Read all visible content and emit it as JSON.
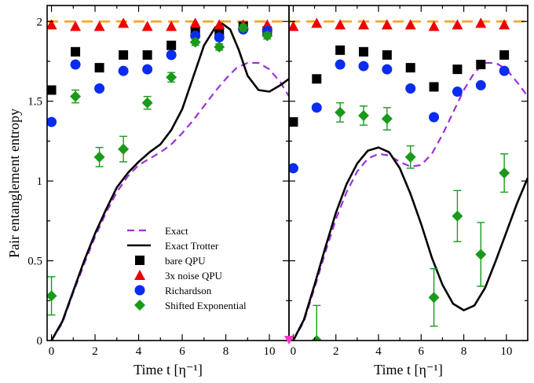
{
  "chart_data": {
    "type": "scatter",
    "ylabel": "Pair entanglement entropy",
    "ylim": [
      0,
      2.1
    ],
    "yticks": [
      0,
      0.5,
      1,
      1.5,
      2
    ],
    "ytick_labels": [
      "0",
      "0.5",
      "1",
      "1.5",
      "2"
    ],
    "legend_position": "bottom-center of left panel",
    "panels": [
      {
        "name": "left",
        "xlabel": "Time t [η⁻¹]",
        "xlim": [
          -0.2,
          10.9
        ],
        "xticks": [
          0,
          2,
          4,
          6,
          8,
          10
        ],
        "xtick_labels": [
          "0",
          "2",
          "4",
          "6",
          "8",
          "10"
        ],
        "series": [
          {
            "name": "Exact",
            "kind": "line",
            "color": "#9b30d9",
            "dash": "9,6",
            "x": [
              0,
              0.5,
              1,
              1.5,
              2,
              2.5,
              3,
              3.5,
              4,
              4.5,
              5,
              5.5,
              6,
              6.5,
              7,
              7.5,
              8,
              8.5,
              9,
              9.5,
              10,
              10.5,
              10.9
            ],
            "y": [
              0,
              0.11,
              0.3,
              0.48,
              0.65,
              0.8,
              0.93,
              1.03,
              1.1,
              1.14,
              1.18,
              1.23,
              1.3,
              1.38,
              1.47,
              1.56,
              1.64,
              1.71,
              1.74,
              1.74,
              1.7,
              1.62,
              1.53
            ]
          },
          {
            "name": "Exact Trotter",
            "kind": "line",
            "color": "#000000",
            "dash": "",
            "x": [
              0,
              0.5,
              1,
              1.5,
              2,
              2.5,
              3,
              3.5,
              4,
              4.5,
              5,
              5.5,
              6,
              6.5,
              7,
              7.5,
              7.8,
              8.2,
              8.6,
              9,
              9.5,
              10,
              10.5,
              10.9
            ],
            "y": [
              0,
              0.12,
              0.31,
              0.5,
              0.67,
              0.82,
              0.96,
              1.05,
              1.12,
              1.18,
              1.23,
              1.32,
              1.45,
              1.65,
              1.85,
              1.96,
              1.99,
              1.95,
              1.82,
              1.66,
              1.57,
              1.56,
              1.6,
              1.64
            ]
          },
          {
            "name": "bare QPU",
            "kind": "square",
            "color": "#000000",
            "x": [
              0,
              1.1,
              2.2,
              3.3,
              4.4,
              5.5,
              6.6,
              7.7,
              8.8,
              9.9
            ],
            "y": [
              1.57,
              1.81,
              1.71,
              1.79,
              1.79,
              1.85,
              1.94,
              1.94,
              1.97,
              1.94
            ]
          },
          {
            "name": "3x noise QPU",
            "kind": "triangle",
            "color": "#ee0000",
            "x": [
              0,
              1.1,
              2.2,
              3.3,
              4.4,
              5.5,
              6.6,
              7.7,
              8.8,
              9.9
            ],
            "y": [
              1.98,
              1.97,
              1.97,
              1.99,
              1.97,
              1.97,
              1.99,
              1.98,
              1.98,
              1.98
            ]
          },
          {
            "name": "Richardson",
            "kind": "circle",
            "color": "#0a2cf0",
            "x": [
              0,
              1.1,
              2.2,
              3.3,
              4.4,
              5.5,
              6.6,
              7.7,
              8.8,
              9.9
            ],
            "y": [
              1.37,
              1.73,
              1.58,
              1.69,
              1.7,
              1.79,
              1.91,
              1.9,
              1.95,
              1.94
            ]
          },
          {
            "name": "Shifted Exponential",
            "kind": "diamond",
            "color": "#1a9a1a",
            "x": [
              0,
              1.1,
              2.2,
              3.3,
              4.4,
              5.5,
              6.6,
              7.7,
              8.8,
              9.9
            ],
            "y": [
              0.28,
              1.53,
              1.15,
              1.2,
              1.49,
              1.65,
              1.87,
              1.84,
              1.96,
              1.91
            ],
            "err": [
              0.12,
              0.04,
              0.06,
              0.08,
              0.04,
              0.03,
              0.02,
              0.02,
              0.02,
              0.02
            ]
          },
          {
            "name": "reference",
            "kind": "hline",
            "color": "#f5a623",
            "dash": "14,8",
            "y": 2
          }
        ]
      },
      {
        "name": "right",
        "xlabel": "Time t [η⁻¹]",
        "xlim": [
          -0.2,
          11.0
        ],
        "xticks": [
          0,
          2,
          4,
          6,
          8,
          10
        ],
        "xtick_labels": [
          "0",
          "2",
          "4",
          "6",
          "8",
          "10"
        ],
        "series": [
          {
            "name": "Exact",
            "kind": "line",
            "color": "#9b30d9",
            "dash": "9,6",
            "x": [
              0,
              0.5,
              1,
              1.5,
              2,
              2.5,
              3,
              3.5,
              4,
              4.5,
              5,
              5.5,
              6,
              6.5,
              7,
              7.5,
              8,
              8.5,
              9,
              9.5,
              10,
              10.5,
              11
            ],
            "y": [
              0,
              0.12,
              0.33,
              0.55,
              0.76,
              0.93,
              1.06,
              1.14,
              1.17,
              1.16,
              1.12,
              1.09,
              1.1,
              1.17,
              1.29,
              1.43,
              1.57,
              1.68,
              1.74,
              1.74,
              1.7,
              1.62,
              1.53
            ]
          },
          {
            "name": "Exact Trotter",
            "kind": "line",
            "color": "#000000",
            "dash": "",
            "x": [
              0,
              0.5,
              1,
              1.5,
              2,
              2.5,
              3,
              3.5,
              4,
              4.5,
              5,
              5.5,
              6,
              6.5,
              7,
              7.5,
              8,
              8.5,
              9,
              9.5,
              10,
              10.5,
              11
            ],
            "y": [
              0,
              0.13,
              0.35,
              0.58,
              0.8,
              0.98,
              1.11,
              1.19,
              1.21,
              1.18,
              1.08,
              0.92,
              0.73,
              0.52,
              0.35,
              0.23,
              0.19,
              0.22,
              0.33,
              0.5,
              0.68,
              0.86,
              1.02
            ]
          },
          {
            "name": "bare QPU",
            "kind": "square",
            "color": "#000000",
            "x": [
              0,
              1.1,
              2.2,
              3.3,
              4.4,
              5.5,
              6.6,
              7.7,
              8.8,
              9.9
            ],
            "y": [
              1.37,
              1.64,
              1.82,
              1.81,
              1.79,
              1.71,
              1.59,
              1.7,
              1.73,
              1.79
            ]
          },
          {
            "name": "3x noise QPU",
            "kind": "triangle",
            "color": "#ee0000",
            "x": [
              0,
              1.1,
              2.2,
              3.3,
              4.4,
              5.5,
              6.6,
              7.7,
              8.8,
              9.9
            ],
            "y": [
              1.97,
              1.99,
              1.98,
              1.98,
              1.98,
              1.98,
              1.97,
              1.98,
              1.99,
              1.98
            ]
          },
          {
            "name": "Richardson",
            "kind": "circle",
            "color": "#0a2cf0",
            "x": [
              0,
              1.1,
              2.2,
              3.3,
              4.4,
              5.5,
              6.6,
              7.7,
              8.8,
              9.9
            ],
            "y": [
              1.08,
              1.46,
              1.73,
              1.72,
              1.7,
              1.58,
              1.4,
              1.56,
              1.6,
              1.69
            ]
          },
          {
            "name": "Shifted Exponential",
            "kind": "diamond",
            "color": "#1a9a1a",
            "x": [
              0,
              1.1,
              2.2,
              3.3,
              4.4,
              5.5,
              6.6,
              7.7,
              8.8,
              9.9
            ],
            "y": [
              -0.02,
              0.0,
              1.43,
              1.41,
              1.39,
              1.15,
              0.27,
              0.78,
              0.54,
              1.05
            ],
            "err": [
              0.0,
              0.22,
              0.06,
              0.06,
              0.07,
              0.07,
              0.18,
              0.16,
              0.2,
              0.12
            ]
          },
          {
            "name": "reference",
            "kind": "hline",
            "color": "#f5a623",
            "dash": "14,8",
            "y": 2
          }
        ]
      }
    ],
    "legend": [
      {
        "label": "Exact",
        "kind": "line",
        "color": "#9b30d9",
        "dash": "9,6"
      },
      {
        "label": "Exact Trotter",
        "kind": "line",
        "color": "#000000",
        "dash": ""
      },
      {
        "label": "bare QPU",
        "kind": "square",
        "color": "#000000"
      },
      {
        "label": "3x noise QPU",
        "kind": "triangle",
        "color": "#ee0000"
      },
      {
        "label": "Richardson",
        "kind": "circle",
        "color": "#0a2cf0"
      },
      {
        "label": "Shifted Exponential",
        "kind": "diamond",
        "color": "#1a9a1a"
      }
    ]
  }
}
